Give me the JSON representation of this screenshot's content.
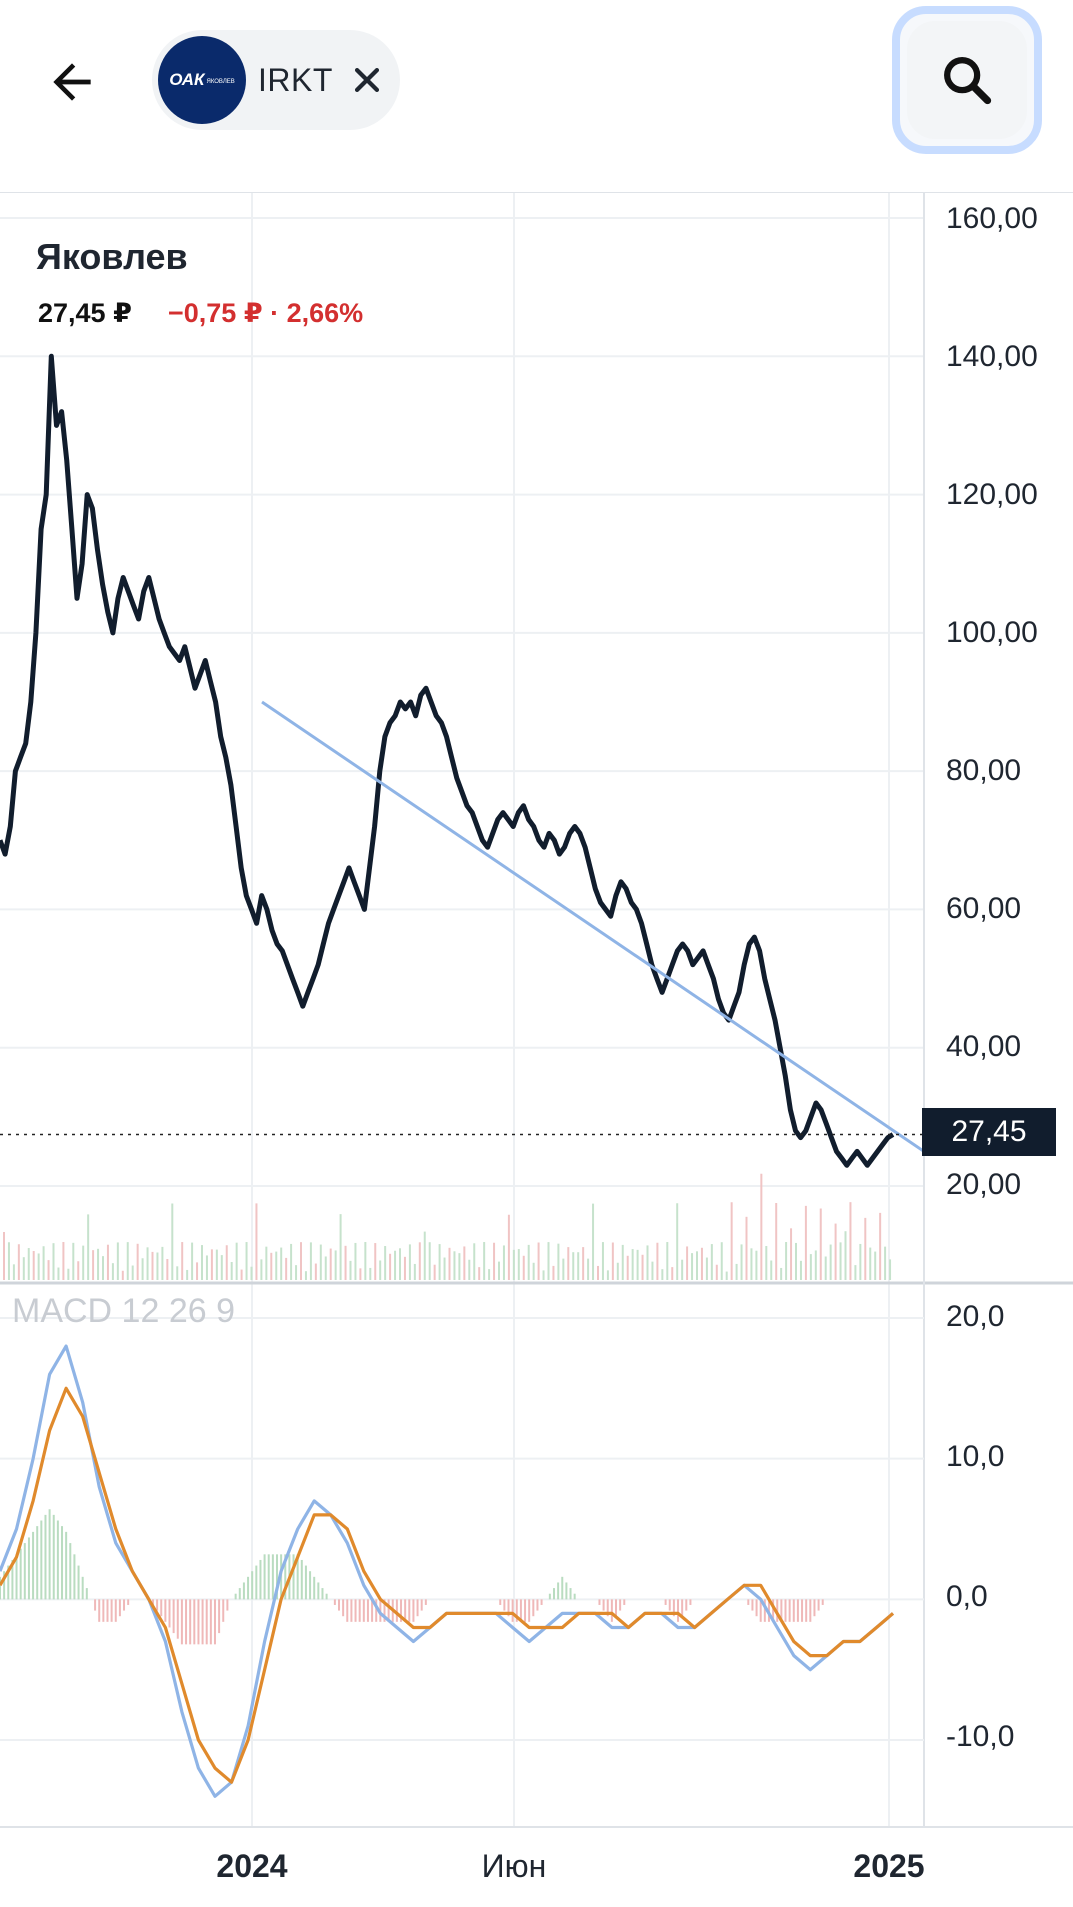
{
  "header": {
    "back_icon": "arrow-left-icon",
    "chip": {
      "logo_text": "ОАК",
      "logo_subtext": "ЯКОВЛЕВ",
      "ticker": "IRKT",
      "close_icon": "close-icon"
    },
    "search_icon": "search-icon"
  },
  "quote": {
    "name": "Яковлев",
    "price": "27,45 ₽",
    "change": "−0,75 ₽ · 2,66%",
    "change_color": "#d32f2f",
    "current_tag": "27,45"
  },
  "indicator": {
    "label": "MACD 12 26 9"
  },
  "chart_data": [
    {
      "type": "line",
      "name": "price",
      "ylim": [
        0,
        160
      ],
      "y_ticks": [
        "160,00",
        "140,00",
        "120,00",
        "100,00",
        "80,00",
        "60,00",
        "40,00",
        "20,00"
      ],
      "x_ticks": [
        "2024",
        "Июн",
        "2025"
      ],
      "line_color": "#111d2d",
      "trend_color": "#8fb4e6",
      "current_value": 27.45,
      "values": [
        70,
        68,
        72,
        80,
        82,
        84,
        90,
        100,
        115,
        120,
        140,
        130,
        132,
        125,
        115,
        105,
        110,
        120,
        118,
        112,
        107,
        103,
        100,
        105,
        108,
        106,
        104,
        102,
        106,
        108,
        105,
        102,
        100,
        98,
        97,
        96,
        98,
        95,
        92,
        94,
        96,
        93,
        90,
        85,
        82,
        78,
        72,
        66,
        62,
        60,
        58,
        62,
        60,
        57,
        55,
        54,
        52,
        50,
        48,
        46,
        48,
        50,
        52,
        55,
        58,
        60,
        62,
        64,
        66,
        64,
        62,
        60,
        66,
        72,
        80,
        85,
        87,
        88,
        90,
        89,
        90,
        88,
        91,
        92,
        90,
        88,
        87,
        85,
        82,
        79,
        77,
        75,
        74,
        72,
        70,
        69,
        71,
        73,
        74,
        73,
        72,
        74,
        75,
        73,
        72,
        70,
        69,
        71,
        70,
        68,
        69,
        71,
        72,
        71,
        69,
        66,
        63,
        61,
        60,
        59,
        62,
        64,
        63,
        61,
        60,
        58,
        55,
        52,
        50,
        48,
        50,
        52,
        54,
        55,
        54,
        52,
        53,
        54,
        52,
        50,
        47,
        45,
        44,
        46,
        48,
        52,
        55,
        56,
        54,
        50,
        47,
        44,
        40,
        36,
        31,
        28,
        27,
        28,
        30,
        32,
        31,
        29,
        27,
        25,
        24,
        23,
        24,
        25,
        24,
        23,
        24,
        25,
        26,
        27,
        27.45
      ],
      "series_trend": [
        90,
        25
      ]
    },
    {
      "type": "line",
      "name": "MACD 12 26 9",
      "ylim": [
        -16,
        22
      ],
      "y_ticks": [
        "20,0",
        "10,0",
        "0,0",
        "-10,0"
      ],
      "series": [
        {
          "name": "MACD",
          "color": "#8fb4e6",
          "values": [
            2,
            5,
            10,
            16,
            18,
            14,
            8,
            4,
            2,
            0,
            -3,
            -8,
            -12,
            -14,
            -13,
            -9,
            -3,
            2,
            5,
            7,
            6,
            4,
            1,
            -1,
            -2,
            -3,
            -2,
            -1,
            -1,
            -1,
            -1,
            -2,
            -3,
            -2,
            -1,
            -1,
            -1,
            -2,
            -2,
            -1,
            -1,
            -2,
            -2,
            -1,
            0,
            1,
            0,
            -2,
            -4,
            -5,
            -4,
            -3,
            -3,
            -2,
            -1
          ]
        },
        {
          "name": "Signal",
          "color": "#e08a2c",
          "values": [
            1,
            3,
            7,
            12,
            15,
            13,
            9,
            5,
            2,
            0,
            -2,
            -6,
            -10,
            -12,
            -13,
            -10,
            -5,
            0,
            3,
            6,
            6,
            5,
            2,
            0,
            -1,
            -2,
            -2,
            -1,
            -1,
            -1,
            -1,
            -1,
            -2,
            -2,
            -2,
            -1,
            -1,
            -1,
            -2,
            -1,
            -1,
            -1,
            -2,
            -1,
            0,
            1,
            1,
            -1,
            -3,
            -4,
            -4,
            -3,
            -3,
            -2,
            -1
          ]
        }
      ],
      "histogram_colors": {
        "positive": "#b9dcc0",
        "negative": "#efb8b8"
      }
    }
  ]
}
